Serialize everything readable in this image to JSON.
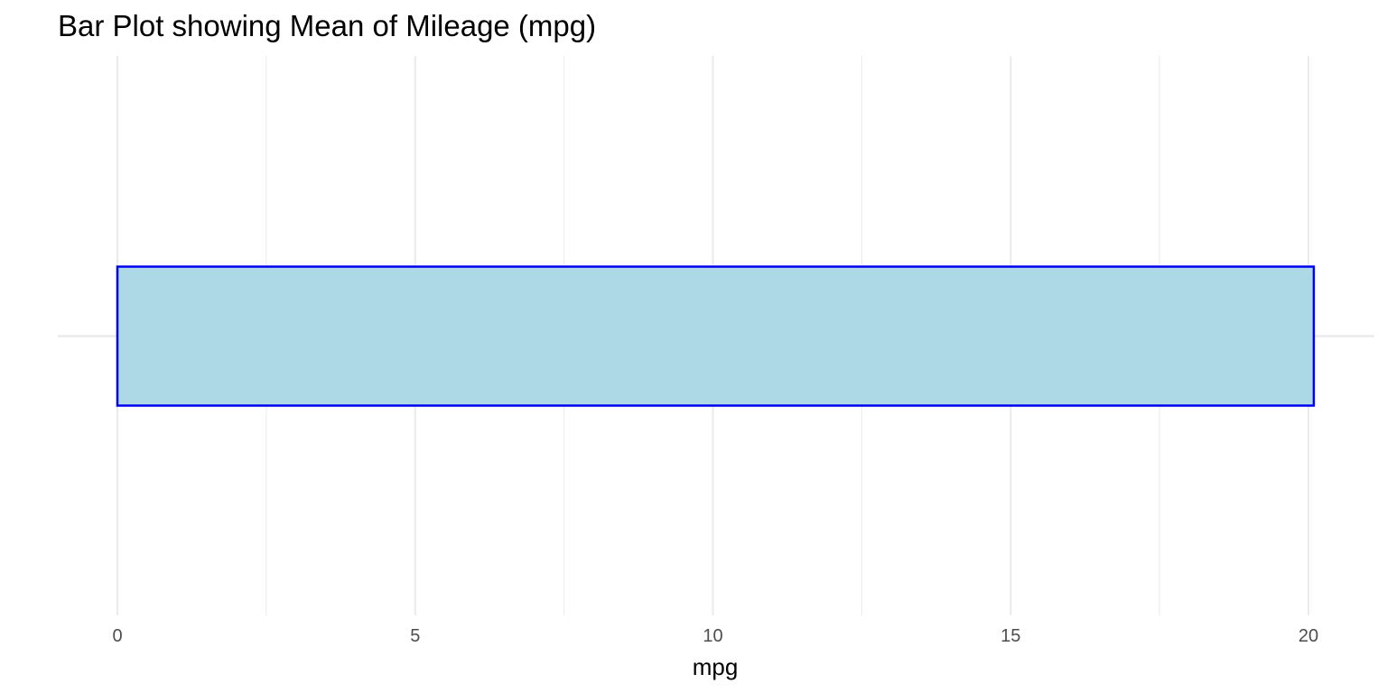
{
  "chart_data": {
    "type": "bar",
    "orientation": "horizontal",
    "title": "Bar Plot showing Mean of Mileage (mpg)",
    "xlabel": "mpg",
    "ylabel": "",
    "categories": [
      ""
    ],
    "values": [
      20.09
    ],
    "xlim": [
      0,
      20.09
    ],
    "x_ticks": [
      0,
      5,
      10,
      15,
      20
    ],
    "x_tick_labels": [
      "0",
      "5",
      "10",
      "15",
      "20"
    ],
    "grid": true,
    "legend": "none",
    "bar_fill_color": "#add8e6",
    "bar_border_color": "#0000ee",
    "grid_color": "#ebebeb"
  }
}
